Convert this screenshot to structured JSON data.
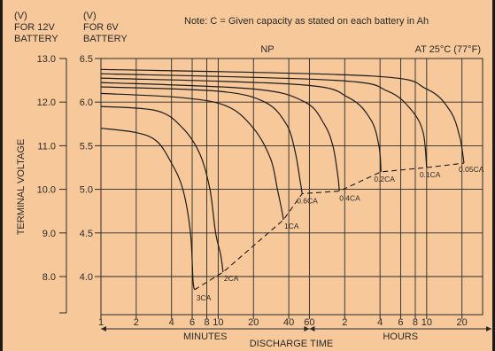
{
  "header": {
    "col12_unit": "(V)",
    "col12_for": "FOR 12V",
    "col12_battery": "BATTERY",
    "col6_unit": "(V)",
    "col6_for": "FOR 6V",
    "col6_battery": "BATTERY",
    "note": "Note: C = Given capacity as stated on each battery in Ah"
  },
  "chart_data": {
    "type": "line",
    "title": "NP",
    "condition": "AT 25°C (77°F)",
    "ylabel": "TERMINAL VOLTAGE",
    "xlabel": "DISCHARGE TIME",
    "x_scale": "log",
    "x_unit_sections": [
      "MINUTES",
      "HOURS"
    ],
    "x_ticks": [
      {
        "label": "1",
        "minutes": 1
      },
      {
        "label": "2",
        "minutes": 2
      },
      {
        "label": "4",
        "minutes": 4
      },
      {
        "label": "6",
        "minutes": 6
      },
      {
        "label": "8",
        "minutes": 8
      },
      {
        "label": "10",
        "minutes": 10
      },
      {
        "label": "20",
        "minutes": 20
      },
      {
        "label": "40",
        "minutes": 40
      },
      {
        "label": "60",
        "minutes": 60
      },
      {
        "label": "2",
        "minutes": 120
      },
      {
        "label": "4",
        "minutes": 240
      },
      {
        "label": "6",
        "minutes": 360
      },
      {
        "label": "8",
        "minutes": 480
      },
      {
        "label": "10",
        "minutes": 600
      },
      {
        "label": "20",
        "minutes": 1200
      }
    ],
    "y_ticks_12v": [
      "13.0",
      "12.0",
      "11.0",
      "10.0",
      "9.0",
      "8.0"
    ],
    "y_ticks_6v": [
      "6.5",
      "6.0",
      "5.5",
      "5.0",
      "4.5",
      "4.0"
    ],
    "ylim_12v": [
      7.2,
      13.0
    ],
    "grid": true,
    "series": [
      {
        "name": "3CA",
        "points": [
          [
            1,
            11.4
          ],
          [
            2,
            11.3
          ],
          [
            3,
            11.1
          ],
          [
            4,
            10.6
          ],
          [
            5,
            10.0
          ],
          [
            5.8,
            9.0
          ],
          [
            6.1,
            7.9
          ],
          [
            6.3,
            7.7
          ]
        ]
      },
      {
        "name": "2CA",
        "points": [
          [
            1,
            11.9
          ],
          [
            3,
            11.8
          ],
          [
            5,
            11.4
          ],
          [
            7,
            10.8
          ],
          [
            8.5,
            10.0
          ],
          [
            9.5,
            9.0
          ],
          [
            10.5,
            8.5
          ],
          [
            11,
            8.1
          ]
        ]
      },
      {
        "name": "1CA",
        "points": [
          [
            1,
            12.2
          ],
          [
            5,
            12.1
          ],
          [
            12,
            11.9
          ],
          [
            20,
            11.4
          ],
          [
            28,
            10.7
          ],
          [
            32,
            10.0
          ],
          [
            35,
            9.5
          ],
          [
            36,
            9.3
          ]
        ]
      },
      {
        "name": "0.6CA",
        "points": [
          [
            1,
            12.35
          ],
          [
            10,
            12.25
          ],
          [
            25,
            12.0
          ],
          [
            38,
            11.5
          ],
          [
            45,
            10.9
          ],
          [
            50,
            10.2
          ],
          [
            52,
            9.9
          ]
        ]
      },
      {
        "name": "0.4CA",
        "points": [
          [
            1,
            12.45
          ],
          [
            20,
            12.3
          ],
          [
            55,
            12.0
          ],
          [
            80,
            11.5
          ],
          [
            95,
            11.0
          ],
          [
            105,
            10.3
          ],
          [
            108,
            9.96
          ]
        ]
      },
      {
        "name": "0.2CA",
        "points": [
          [
            1,
            12.55
          ],
          [
            50,
            12.4
          ],
          [
            130,
            12.1
          ],
          [
            200,
            11.6
          ],
          [
            235,
            11.0
          ],
          [
            245,
            10.4
          ]
        ]
      },
      {
        "name": "0.1CA",
        "points": [
          [
            1,
            12.65
          ],
          [
            100,
            12.5
          ],
          [
            280,
            12.25
          ],
          [
            450,
            11.8
          ],
          [
            560,
            11.3
          ],
          [
            600,
            10.5
          ]
        ]
      },
      {
        "name": "0.05CA",
        "points": [
          [
            1,
            12.75
          ],
          [
            200,
            12.6
          ],
          [
            600,
            12.3
          ],
          [
            950,
            11.8
          ],
          [
            1150,
            11.2
          ],
          [
            1250,
            10.6
          ]
        ]
      }
    ],
    "cutoff_line": {
      "style": "dashed",
      "points": [
        [
          6.3,
          7.7
        ],
        [
          11,
          8.1
        ],
        [
          36,
          9.3
        ],
        [
          52,
          9.9
        ],
        [
          108,
          9.96
        ],
        [
          245,
          10.4
        ],
        [
          600,
          10.5
        ],
        [
          1250,
          10.6
        ]
      ]
    }
  }
}
